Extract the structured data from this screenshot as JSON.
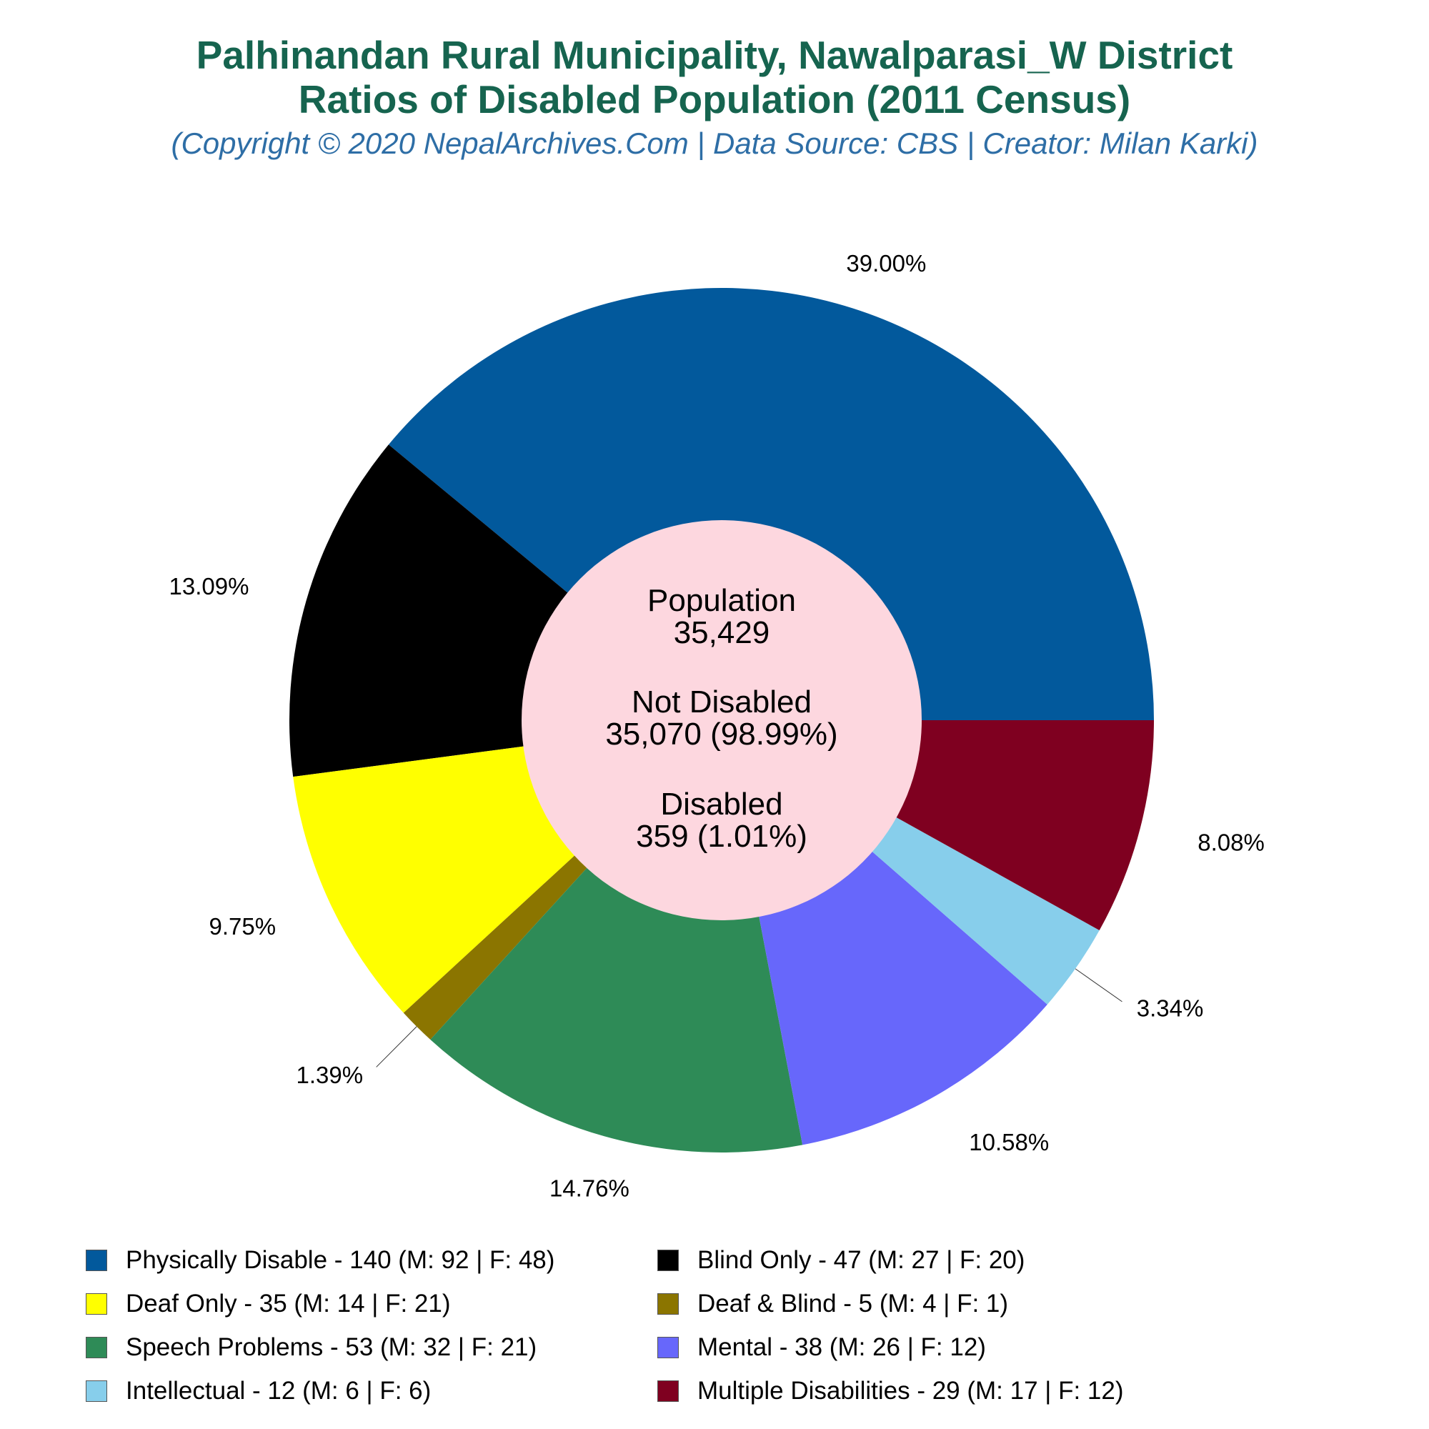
{
  "title_line1": "Palhinandan Rural Municipality, Nawalparasi_W District",
  "title_line2": "Ratios of Disabled Population (2011 Census)",
  "subtitle": "(Copyright © 2020 NepalArchives.Com | Data Source: CBS | Creator: Milan Karki)",
  "center": {
    "population_label": "Population",
    "population_value": "35,429",
    "not_disabled_label": "Not Disabled",
    "not_disabled_value": "35,070 (98.99%)",
    "disabled_label": "Disabled",
    "disabled_value": "359 (1.01%)"
  },
  "chart_data": {
    "type": "pie",
    "style": "donut",
    "center_color": "#fdd7df",
    "start": "3 o'clock, counter-clockwise",
    "slices": [
      {
        "name": "Physically Disable",
        "value": 140,
        "male": 92,
        "female": 48,
        "percent_label": "39.00%",
        "color": "#02599c",
        "legend": "Physically Disable - 140 (M: 92 | F: 48)"
      },
      {
        "name": "Blind Only",
        "value": 47,
        "male": 27,
        "female": 20,
        "percent_label": "13.09%",
        "color": "#000000",
        "legend": "Blind Only - 47 (M: 27 | F: 20)"
      },
      {
        "name": "Deaf Only",
        "value": 35,
        "male": 14,
        "female": 21,
        "percent_label": "9.75%",
        "color": "#ffff00",
        "legend": "Deaf Only - 35 (M: 14 | F: 21)"
      },
      {
        "name": "Deaf & Blind",
        "value": 5,
        "male": 4,
        "female": 1,
        "percent_label": "1.39%",
        "color": "#8b7500",
        "legend": "Deaf & Blind - 5 (M: 4 | F: 1)"
      },
      {
        "name": "Speech Problems",
        "value": 53,
        "male": 32,
        "female": 21,
        "percent_label": "14.76%",
        "color": "#2e8b57",
        "legend": "Speech Problems - 53 (M: 32 | F: 21)"
      },
      {
        "name": "Mental",
        "value": 38,
        "male": 26,
        "female": 12,
        "percent_label": "10.58%",
        "color": "#6767fb",
        "legend": "Mental - 38 (M: 26 | F: 12)"
      },
      {
        "name": "Intellectual",
        "value": 12,
        "male": 6,
        "female": 6,
        "percent_label": "3.34%",
        "color": "#87ceeb",
        "legend": "Intellectual - 12 (M: 6 | F: 6)"
      },
      {
        "name": "Multiple Disabilities",
        "value": 29,
        "male": 17,
        "female": 12,
        "percent_label": "8.08%",
        "color": "#7f0020",
        "legend": "Multiple Disabilities - 29 (M: 17 | F: 12)"
      }
    ],
    "legend_position": "bottom"
  }
}
